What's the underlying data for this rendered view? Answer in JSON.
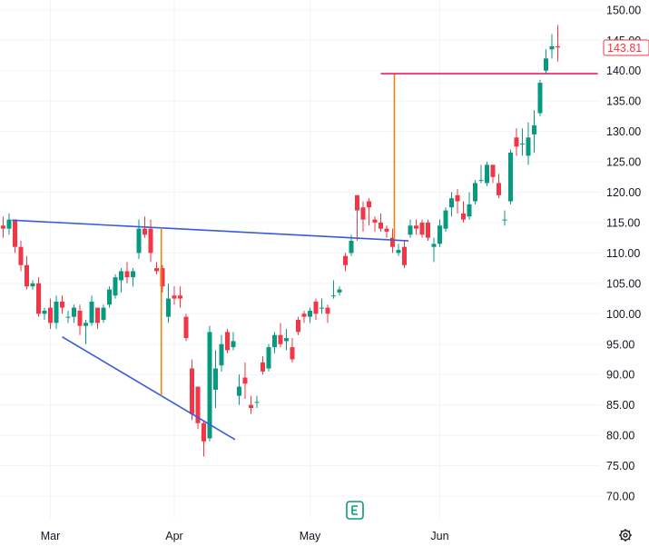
{
  "chart_data": {
    "type": "candlestick",
    "colors": {
      "up": "#089981",
      "down": "#f23645",
      "grid": "#f0f3fa",
      "trendline": "#3b5bdb",
      "measure": "#f57c00",
      "level": "#e91e63"
    },
    "y_axis": {
      "ticks": [
        "70.00",
        "75.00",
        "80.00",
        "85.00",
        "90.00",
        "95.00",
        "100.00",
        "105.00",
        "110.00",
        "115.00",
        "120.00",
        "125.00",
        "130.00",
        "135.00",
        "140.00",
        "145.00",
        "150.00"
      ],
      "range": [
        66.5,
        151.7
      ]
    },
    "x_axis": {
      "ticks": [
        {
          "label": "Mar",
          "index": 8
        },
        {
          "label": "Apr",
          "index": 29
        },
        {
          "label": "May",
          "index": 52
        },
        {
          "label": "Jun",
          "index": 74
        }
      ]
    },
    "last_price": "143.81",
    "ohlc": [
      [
        114.5,
        116.0,
        112.5,
        114.0
      ],
      [
        114.0,
        116.5,
        113.0,
        115.5
      ],
      [
        115.5,
        115.5,
        110.0,
        111.0
      ],
      [
        111.0,
        112.0,
        107.0,
        108.0
      ],
      [
        108.0,
        109.5,
        104.0,
        104.5
      ],
      [
        104.5,
        105.5,
        104.0,
        105.0
      ],
      [
        105.0,
        106.0,
        99.5,
        100.0
      ],
      [
        100.0,
        101.0,
        99.0,
        100.5
      ],
      [
        101.0,
        102.5,
        97.5,
        98.5
      ],
      [
        98.5,
        103.0,
        97.5,
        102.0
      ],
      [
        102.0,
        103.0,
        100.0,
        101.0
      ],
      [
        99.5,
        100.5,
        98.5,
        99.5
      ],
      [
        99.5,
        101.5,
        98.5,
        101.0
      ],
      [
        100.5,
        101.5,
        96.5,
        98.0
      ],
      [
        98.0,
        99.0,
        95.0,
        98.5
      ],
      [
        98.5,
        103.0,
        98.0,
        102.0
      ],
      [
        101.0,
        101.0,
        97.5,
        98.5
      ],
      [
        99.0,
        101.5,
        98.5,
        101.0
      ],
      [
        101.5,
        104.5,
        101.0,
        104.0
      ],
      [
        103.0,
        106.5,
        102.5,
        106.0
      ],
      [
        105.5,
        107.5,
        103.5,
        107.0
      ],
      [
        107.0,
        108.5,
        105.0,
        106.0
      ],
      [
        106.0,
        107.5,
        104.5,
        107.0
      ],
      [
        110.0,
        115.5,
        109.0,
        114.0
      ],
      [
        114.0,
        116.0,
        112.5,
        113.0
      ],
      [
        114.0,
        115.5,
        108.5,
        110.0
      ],
      [
        107.5,
        108.5,
        106.5,
        107.0
      ],
      [
        107.5,
        108.0,
        103.5,
        104.5
      ],
      [
        99.5,
        105.0,
        98.5,
        102.5
      ],
      [
        103.0,
        104.5,
        101.5,
        102.5
      ],
      [
        103.0,
        104.5,
        101.0,
        102.5
      ],
      [
        99.5,
        100.0,
        95.5,
        96.0
      ],
      [
        91.0,
        92.5,
        82.5,
        83.5
      ],
      [
        88.0,
        88.0,
        81.0,
        82.0
      ],
      [
        82.0,
        82.5,
        76.5,
        79.0
      ],
      [
        79.5,
        98.0,
        79.0,
        97.0
      ],
      [
        87.5,
        94.0,
        84.5,
        91.0
      ],
      [
        91.5,
        96.5,
        90.5,
        95.0
      ],
      [
        97.0,
        97.5,
        93.5,
        94.0
      ],
      [
        94.5,
        97.0,
        94.0,
        95.5
      ],
      [
        86.5,
        90.0,
        85.0,
        88.0
      ],
      [
        89.5,
        92.0,
        86.0,
        88.5
      ],
      [
        85.0,
        86.5,
        83.5,
        84.5
      ],
      [
        85.5,
        86.5,
        84.5,
        85.5
      ],
      [
        92.0,
        93.0,
        90.0,
        90.5
      ],
      [
        91.0,
        95.0,
        90.5,
        94.5
      ],
      [
        94.5,
        97.0,
        93.5,
        96.5
      ],
      [
        96.5,
        98.5,
        94.5,
        95.0
      ],
      [
        95.5,
        97.5,
        94.0,
        96.0
      ],
      [
        94.5,
        96.0,
        92.0,
        92.5
      ],
      [
        99.0,
        99.5,
        96.5,
        97.0
      ],
      [
        100.0,
        100.5,
        98.5,
        99.5
      ],
      [
        99.5,
        101.0,
        98.5,
        100.5
      ],
      [
        102.0,
        102.5,
        99.0,
        100.0
      ],
      [
        101.0,
        102.5,
        100.0,
        101.0
      ],
      [
        101.0,
        101.5,
        98.5,
        100.0
      ],
      [
        103.0,
        105.5,
        102.5,
        103.0
      ],
      [
        103.5,
        104.5,
        103.0,
        104.0
      ],
      [
        109.5,
        110.0,
        107.0,
        108.0
      ],
      [
        110.0,
        113.0,
        109.5,
        112.0
      ],
      [
        119.5,
        119.5,
        112.0,
        117.0
      ],
      [
        117.5,
        118.5,
        113.5,
        115.5
      ],
      [
        118.5,
        119.0,
        114.5,
        117.5
      ],
      [
        115.5,
        116.0,
        113.5,
        115.0
      ],
      [
        115.0,
        116.5,
        113.5,
        114.0
      ],
      [
        114.0,
        114.5,
        112.5,
        113.5
      ],
      [
        112.5,
        114.0,
        110.0,
        111.0
      ],
      [
        110.0,
        111.5,
        109.5,
        110.5
      ],
      [
        111.0,
        112.0,
        107.5,
        108.0
      ],
      [
        113.0,
        115.5,
        112.5,
        114.5
      ],
      [
        114.5,
        115.5,
        113.0,
        114.0
      ],
      [
        115.0,
        115.5,
        112.5,
        113.0
      ],
      [
        115.0,
        115.5,
        112.0,
        112.5
      ],
      [
        111.0,
        112.5,
        108.5,
        111.5
      ],
      [
        111.5,
        115.5,
        111.0,
        114.5
      ],
      [
        114.0,
        117.5,
        113.5,
        117.0
      ],
      [
        117.5,
        120.0,
        116.0,
        119.0
      ],
      [
        119.5,
        120.5,
        116.5,
        118.5
      ],
      [
        116.5,
        118.5,
        115.0,
        115.5
      ],
      [
        116.0,
        120.0,
        115.5,
        118.0
      ],
      [
        118.5,
        122.0,
        118.0,
        121.5
      ],
      [
        122.0,
        124.5,
        121.5,
        122.0
      ],
      [
        121.5,
        125.0,
        121.0,
        124.5
      ],
      [
        124.5,
        124.5,
        121.5,
        122.5
      ],
      [
        121.5,
        123.0,
        119.0,
        119.5
      ],
      [
        115.5,
        117.0,
        114.5,
        115.5
      ],
      [
        118.5,
        127.0,
        118.0,
        126.5
      ],
      [
        129.0,
        130.5,
        126.0,
        127.5
      ],
      [
        128.0,
        130.5,
        126.0,
        128.0
      ],
      [
        126.0,
        131.5,
        124.5,
        129.0
      ],
      [
        129.5,
        133.5,
        126.5,
        131.0
      ],
      [
        133.0,
        138.5,
        132.5,
        138.0
      ],
      [
        140.0,
        143.5,
        139.5,
        142.0
      ],
      [
        143.5,
        146.0,
        142.0,
        144.0
      ],
      [
        144.0,
        147.5,
        141.5,
        143.81
      ]
    ]
  }
}
